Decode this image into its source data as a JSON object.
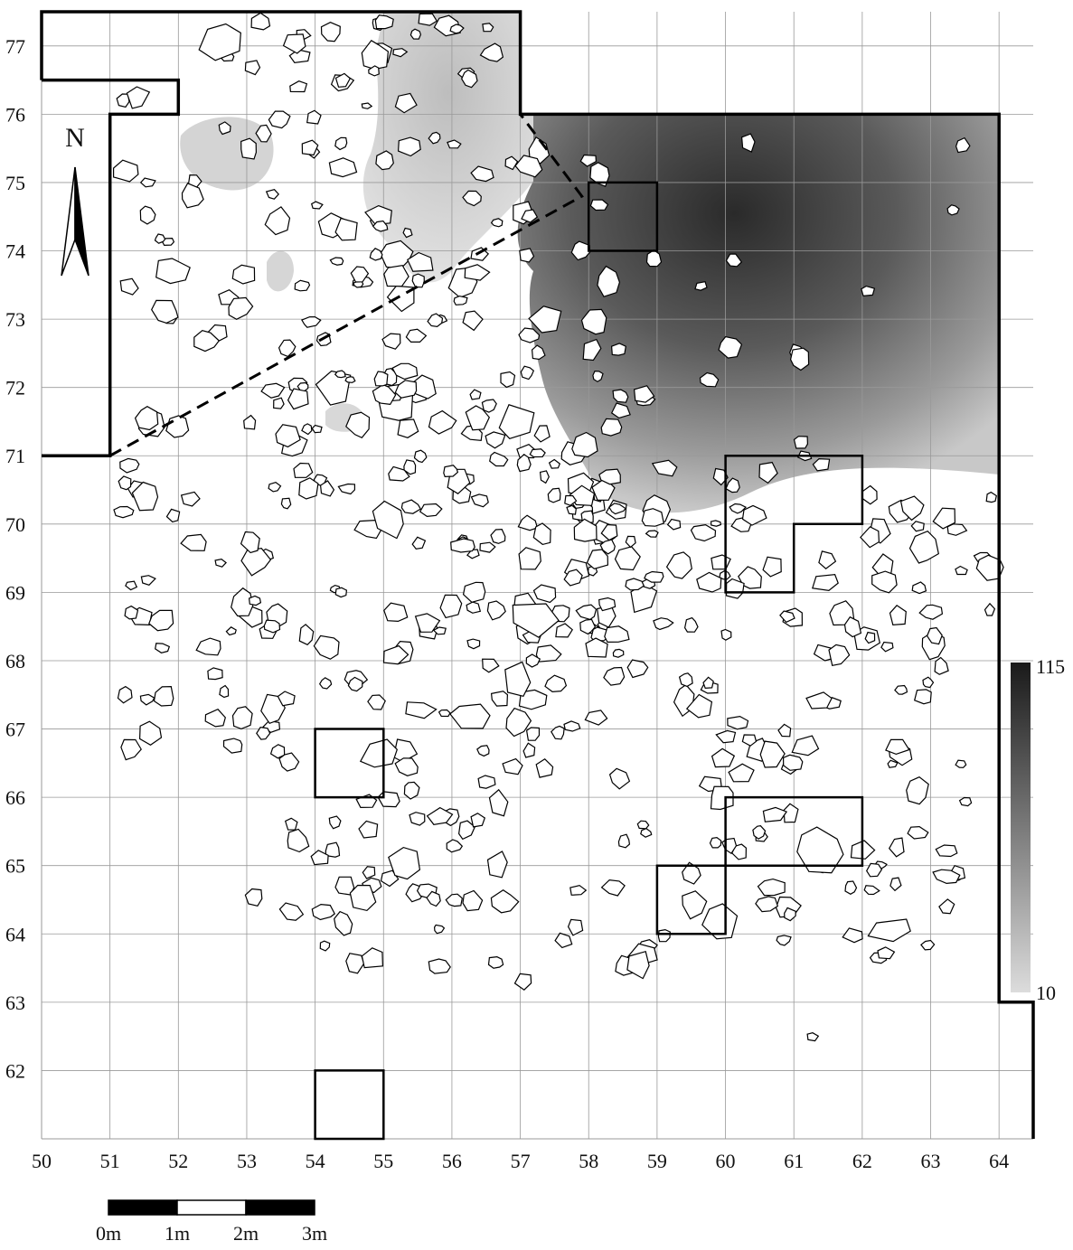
{
  "map": {
    "north_label": "N",
    "xticks": [
      50,
      51,
      52,
      53,
      54,
      55,
      56,
      57,
      58,
      59,
      60,
      61,
      62,
      63,
      64
    ],
    "yticks": [
      62,
      63,
      64,
      65,
      66,
      67,
      68,
      69,
      70,
      71,
      72,
      73,
      74,
      75,
      76,
      77
    ],
    "xlim": [
      50,
      64.5
    ],
    "ylim": [
      61,
      77.5
    ],
    "legend": {
      "max_label": 115,
      "min_label": 10
    },
    "scale_bar": {
      "labels": [
        "0m",
        "1m",
        "2m",
        "3m"
      ]
    }
  }
}
